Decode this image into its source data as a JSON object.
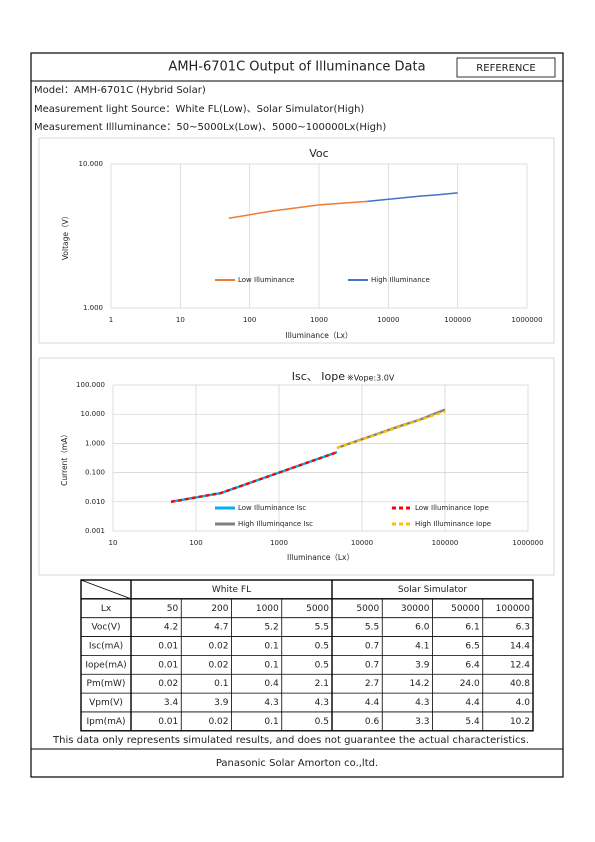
{
  "header": {
    "title": "AMH-6701C Output of Illuminance Data",
    "badge": "REFERENCE"
  },
  "info": [
    "Model：AMH-6701C (Hybrid Solar)",
    "Measurement light Source：White FL(Low)、Solar Simulator(High)",
    "Measurement Illluminance：50~5000Lx(Low)、5000~100000Lx(High)"
  ],
  "chart_data": [
    {
      "type": "line",
      "title": "Voc",
      "x_label": "Illuminance（Lx）",
      "y_label": "Voltage（V）",
      "xscale": "log",
      "yscale": "log",
      "xlim": [
        1,
        1000000
      ],
      "ylim": [
        1,
        10
      ],
      "xticks": [
        1,
        10,
        100,
        1000,
        10000,
        100000,
        1000000
      ],
      "yticks": [
        {
          "value": 1,
          "label": "1.000"
        },
        {
          "value": 10,
          "label": "10.000"
        }
      ],
      "grid": true,
      "legend": "lower center",
      "series": [
        {
          "name": "Low Illuminance",
          "color": "#ed7d31",
          "dashed": false,
          "x": [
            50,
            200,
            1000,
            5000
          ],
          "values": [
            4.2,
            4.7,
            5.2,
            5.5
          ]
        },
        {
          "name": "High Illuminance",
          "color": "#4472c4",
          "dashed": false,
          "x": [
            5000,
            30000,
            50000,
            100000
          ],
          "values": [
            5.5,
            6.0,
            6.1,
            6.3
          ]
        }
      ]
    },
    {
      "type": "line",
      "title": "Isc、 Iope",
      "subtitle": "※Vope:3.0V",
      "x_label": "Illuminance（Lx）",
      "y_label": "Current（mA）",
      "xscale": "log",
      "yscale": "log",
      "xlim": [
        10,
        1000000
      ],
      "ylim": [
        0.001,
        100
      ],
      "xticks": [
        10,
        100,
        1000,
        10000,
        100000,
        1000000
      ],
      "yticks": [
        {
          "value": 0.001,
          "label": "0.001"
        },
        {
          "value": 0.01,
          "label": "0.010"
        },
        {
          "value": 0.1,
          "label": "0.100"
        },
        {
          "value": 1,
          "label": "1.000"
        },
        {
          "value": 10,
          "label": "10.000"
        },
        {
          "value": 100,
          "label": "100.000"
        }
      ],
      "grid": true,
      "legend": "lower center",
      "series": [
        {
          "name": "Low Illuminance Isc",
          "color": "#00b0f0",
          "dashed": false,
          "x": [
            50,
            200,
            1000,
            5000
          ],
          "values": [
            0.01,
            0.02,
            0.1,
            0.5
          ]
        },
        {
          "name": "Low Illuminance Iope",
          "color": "#ff0000",
          "dashed": true,
          "x": [
            50,
            200,
            1000,
            5000
          ],
          "values": [
            0.01,
            0.02,
            0.1,
            0.5
          ]
        },
        {
          "name": "High Illuminqance Isc",
          "color": "#808080",
          "dashed": false,
          "x": [
            5000,
            30000,
            50000,
            100000
          ],
          "values": [
            0.7,
            4.1,
            6.5,
            14.4
          ]
        },
        {
          "name": "High Illuminance Iope",
          "color": "#ffc000",
          "dashed": true,
          "x": [
            5000,
            30000,
            50000,
            100000
          ],
          "values": [
            0.7,
            3.9,
            6.4,
            12.4
          ]
        }
      ]
    }
  ],
  "table": {
    "groups": [
      "White FL",
      "Solar Simulator"
    ],
    "rows": [
      [
        "Lx",
        "50",
        "200",
        "1000",
        "5000",
        "5000",
        "30000",
        "50000",
        "100000"
      ],
      [
        "Voc(V)",
        "4.2",
        "4.7",
        "5.2",
        "5.5",
        "5.5",
        "6.0",
        "6.1",
        "6.3"
      ],
      [
        "Isc(mA)",
        "0.01",
        "0.02",
        "0.1",
        "0.5",
        "0.7",
        "4.1",
        "6.5",
        "14.4"
      ],
      [
        "Iope(mA)",
        "0.01",
        "0.02",
        "0.1",
        "0.5",
        "0.7",
        "3.9",
        "6.4",
        "12.4"
      ],
      [
        "Pm(mW)",
        "0.02",
        "0.1",
        "0.4",
        "2.1",
        "2.7",
        "14.2",
        "24.0",
        "40.8"
      ],
      [
        "Vpm(V)",
        "3.4",
        "3.9",
        "4.3",
        "4.3",
        "4.4",
        "4.3",
        "4.4",
        "4.0"
      ],
      [
        "Ipm(mA)",
        "0.01",
        "0.02",
        "0.1",
        "0.5",
        "0.6",
        "3.3",
        "5.4",
        "10.2"
      ]
    ]
  },
  "note": "This data only represents simulated results, and does not guarantee the actual characteristics.",
  "footer": "Panasonic Solar Amorton co.,ltd."
}
